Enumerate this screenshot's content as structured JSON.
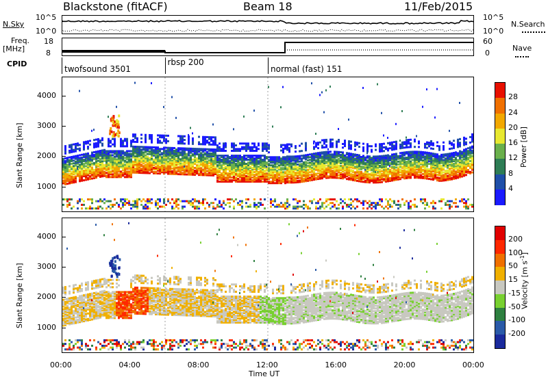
{
  "header": {
    "station": "Blackstone (fitACF)",
    "beam": "Beam 18",
    "date": "11/Feb/2015"
  },
  "top_panels": {
    "nsky_label": "N.Sky",
    "nsky_ticks": [
      "10^5",
      "10^0"
    ],
    "nsearch_label": "N.Search",
    "nsearch_ticks": [
      "10^5",
      "10^0"
    ],
    "freq_label_1": "Freq.",
    "freq_label_2": "[MHz]",
    "freq_ticks": [
      "18",
      "8"
    ],
    "nave_label": "Nave",
    "nave_ticks": [
      "60",
      "0"
    ],
    "cpid_label": "CPID"
  },
  "cpid_segments": [
    {
      "start": 0.0,
      "end": 6.0,
      "label": "twofsound 3501"
    },
    {
      "start": 6.0,
      "end": 12.0,
      "label": "rbsp 200"
    },
    {
      "start": 12.0,
      "end": 24.0,
      "label": "normal (fast) 151"
    }
  ],
  "chart_data": [
    {
      "type": "heatmap",
      "name": "power",
      "ylabel": "Slant Range [km]",
      "xlabel": "",
      "xlim": [
        0,
        24
      ],
      "ylim": [
        180,
        4600
      ],
      "yticks": [
        "1000",
        "2000",
        "3000",
        "4000"
      ],
      "colorbar_label": "Power [dB]",
      "colorbar_ticks": [
        "4",
        "8",
        "12",
        "16",
        "20",
        "24",
        "28"
      ],
      "colorbar_colors": [
        "#1a1aff",
        "#1f4fa8",
        "#2e7d55",
        "#6ab04c",
        "#e8e830",
        "#f2a800",
        "#f07000",
        "#e81000"
      ]
    },
    {
      "type": "heatmap",
      "name": "velocity",
      "ylabel": "Slant Range [km]",
      "xlabel": "Time UT",
      "xlim": [
        0,
        24
      ],
      "ylim": [
        180,
        4600
      ],
      "yticks": [
        "1000",
        "2000",
        "3000",
        "4000"
      ],
      "xticks": [
        "00:00",
        "04:00",
        "08:00",
        "12:00",
        "16:00",
        "20:00",
        "00:00"
      ],
      "colorbar_label": "Velocity [m s",
      "colorbar_label_sup": "-1",
      "colorbar_label_end": "]",
      "colorbar_ticks": [
        "200",
        "100",
        "50",
        "15",
        "-15",
        "-50",
        "-100",
        "-200"
      ],
      "colorbar_colors": [
        "#1a2a9c",
        "#2a5aa8",
        "#2e8040",
        "#78d030",
        "#c8c8c0",
        "#f0b000",
        "#f07000",
        "#ff2800",
        "#e00000"
      ]
    }
  ]
}
